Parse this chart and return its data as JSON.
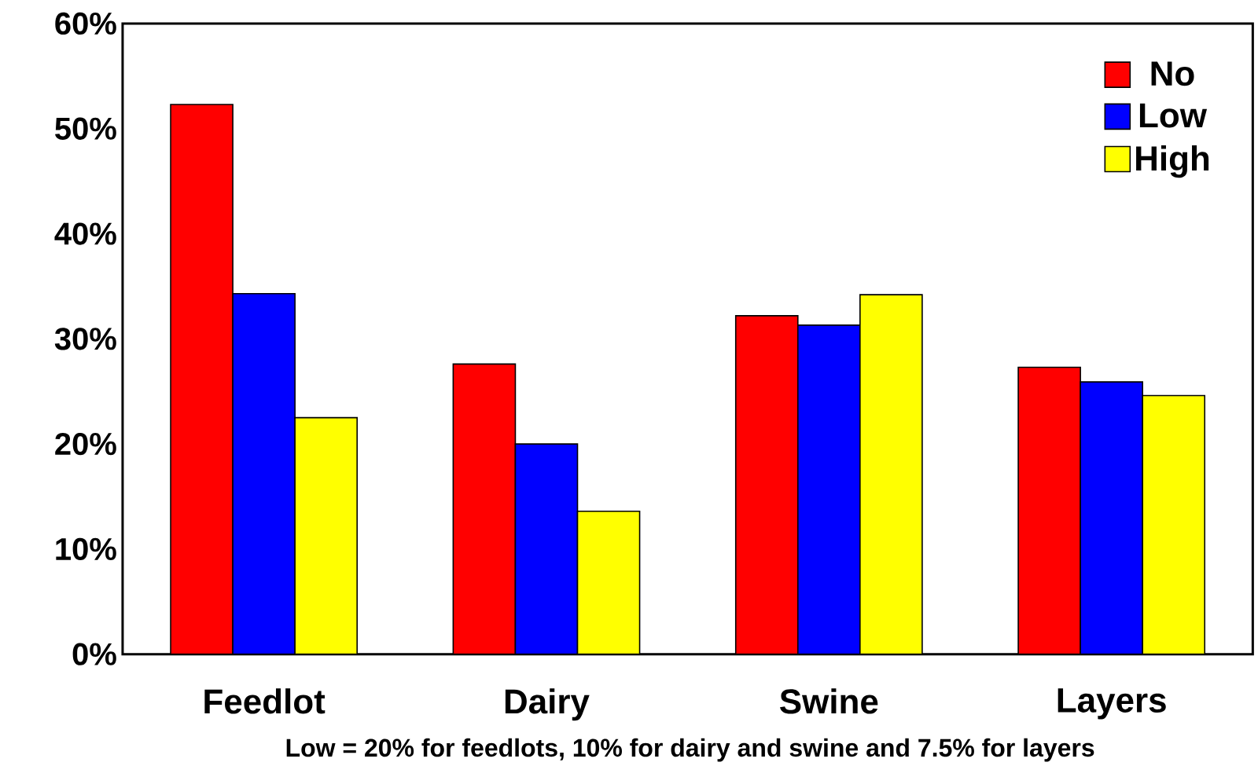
{
  "chart_data": {
    "type": "bar",
    "categories": [
      "Feedlot",
      "Dairy",
      "Swine",
      "Layers"
    ],
    "series": [
      {
        "name": "No",
        "color": "#ff0000",
        "values": [
          52.3,
          27.6,
          32.2,
          27.3
        ]
      },
      {
        "name": "Low",
        "color": "#0000ff",
        "values": [
          34.3,
          20.0,
          31.3,
          25.9
        ]
      },
      {
        "name": "High",
        "color": "#ffff00",
        "values": [
          22.5,
          13.6,
          34.2,
          24.6
        ]
      }
    ],
    "ylim": [
      0,
      60
    ],
    "yticks": [
      {
        "value": 0,
        "label": "0%"
      },
      {
        "value": 10,
        "label": "10%"
      },
      {
        "value": 20,
        "label": "20%"
      },
      {
        "value": 30,
        "label": "30%"
      },
      {
        "value": 40,
        "label": "40%"
      },
      {
        "value": 50,
        "label": "50%"
      },
      {
        "value": 60,
        "label": "60%"
      }
    ],
    "grid": false,
    "legend": "top right",
    "annotations": [
      "Low = 20% for feedlots, 10% for dairy and swine and 7.5% for layers"
    ]
  }
}
